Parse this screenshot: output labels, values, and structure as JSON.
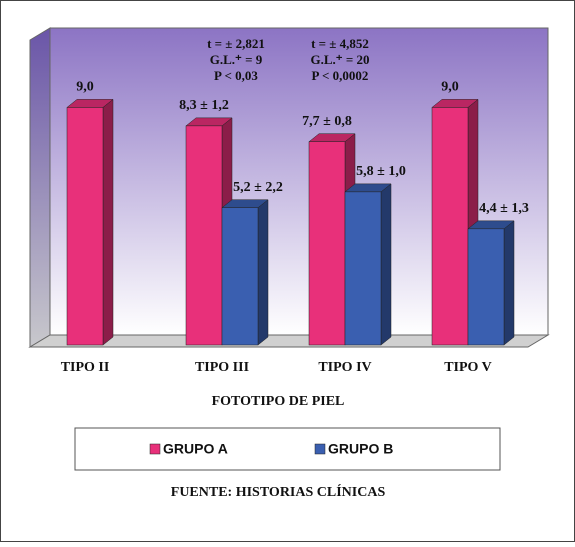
{
  "chart_data": {
    "type": "bar3d",
    "categories": [
      "TIPO II",
      "TIPO III",
      "TIPO IV",
      "TIPO V"
    ],
    "series": [
      {
        "name": "GRUPO A",
        "color": "#e8307a",
        "values": [
          9.0,
          8.3,
          7.7,
          9.0
        ],
        "value_labels": [
          "9,0",
          "8,3 ± 1,2",
          "7,7 ± 0,8",
          "9,0"
        ]
      },
      {
        "name": "GRUPO B",
        "color": "#3a5fb0",
        "values": [
          null,
          5.2,
          5.8,
          4.4
        ],
        "value_labels": [
          null,
          "5,2 ± 2,2",
          "5,8 ± 1,0",
          "4,4  ± 1,3"
        ]
      }
    ],
    "x_label": "FOTOTIPO DE PIEL",
    "annotations": [
      [
        "t = ± 2,821",
        "G.L.⁺ = 9",
        "P < 0,03"
      ],
      [
        "t = ± 4,852",
        "G.L.⁺ = 20",
        "P < 0,0002"
      ]
    ],
    "source": "FUENTE: HISTORIAS CLÍNICAS"
  }
}
